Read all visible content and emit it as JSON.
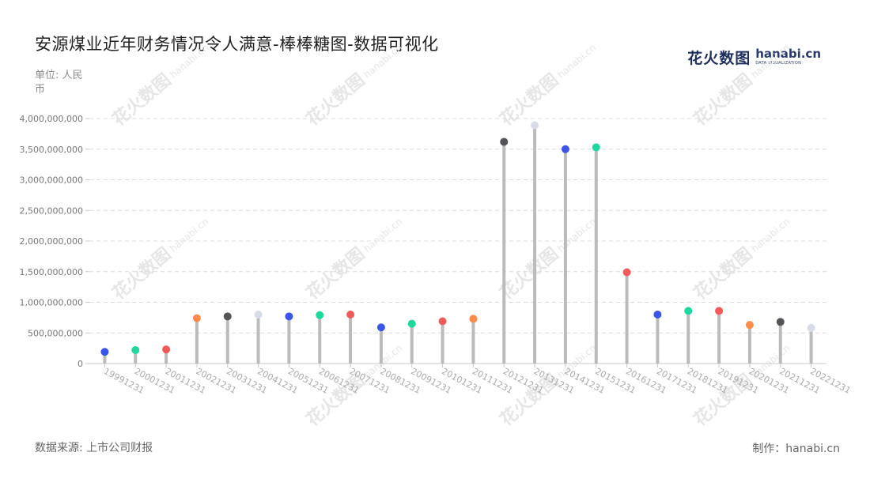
{
  "header": {
    "title": "安源煤业近年财务情况令人满意-棒棒糖图-数据可视化",
    "unit": "单位: 人民币"
  },
  "logo": {
    "cn": "花火数图",
    "en": "hanabi.cn",
    "sub": "DATA VISUALIZATION"
  },
  "footer": {
    "source": "数据来源: 上市公司财报",
    "maker": "制作：hanabi.cn"
  },
  "watermark": {
    "cn": "花火数图",
    "en": "hanabi.cn"
  },
  "chart_data": {
    "type": "lollipop",
    "categories": [
      "19991231",
      "20001231",
      "20011231",
      "20021231",
      "20031231",
      "20041231",
      "20051231",
      "20061231",
      "20071231",
      "20081231",
      "20091231",
      "20101231",
      "20111231",
      "20121231",
      "20131231",
      "20141231",
      "20151231",
      "20161231",
      "20171231",
      "20181231",
      "20191231",
      "20201231",
      "20211231",
      "20221231"
    ],
    "values": [
      190000000,
      220000000,
      230000000,
      740000000,
      770000000,
      800000000,
      770000000,
      790000000,
      800000000,
      590000000,
      650000000,
      690000000,
      730000000,
      3620000000,
      3890000000,
      3500000000,
      3530000000,
      1490000000,
      800000000,
      860000000,
      860000000,
      630000000,
      680000000,
      580000000
    ],
    "colors": [
      "#3b55e6",
      "#1fd8a0",
      "#f05a5a",
      "#ff8c4a",
      "#555559",
      "#d8dbe8",
      "#3b55e6",
      "#1fd8a0",
      "#f05a5a",
      "#3b55e6",
      "#1fd8a0",
      "#f05a5a",
      "#ff8c4a",
      "#555559",
      "#d8dbe8",
      "#3b55e6",
      "#1fd8a0",
      "#f05a5a",
      "#3b55e6",
      "#1fd8a0",
      "#f05a5a",
      "#ff8c4a",
      "#555559",
      "#d8dbe8"
    ],
    "stem_color": "#bbbbbb",
    "yticks": [
      "0",
      "500,000,000",
      "1,000,000,000",
      "1,500,000,000",
      "2,000,000,000",
      "2,500,000,000",
      "3,000,000,000",
      "3,500,000,000",
      "4,000,000,000"
    ],
    "ylim": [
      0,
      4000000000
    ],
    "grid": true
  }
}
